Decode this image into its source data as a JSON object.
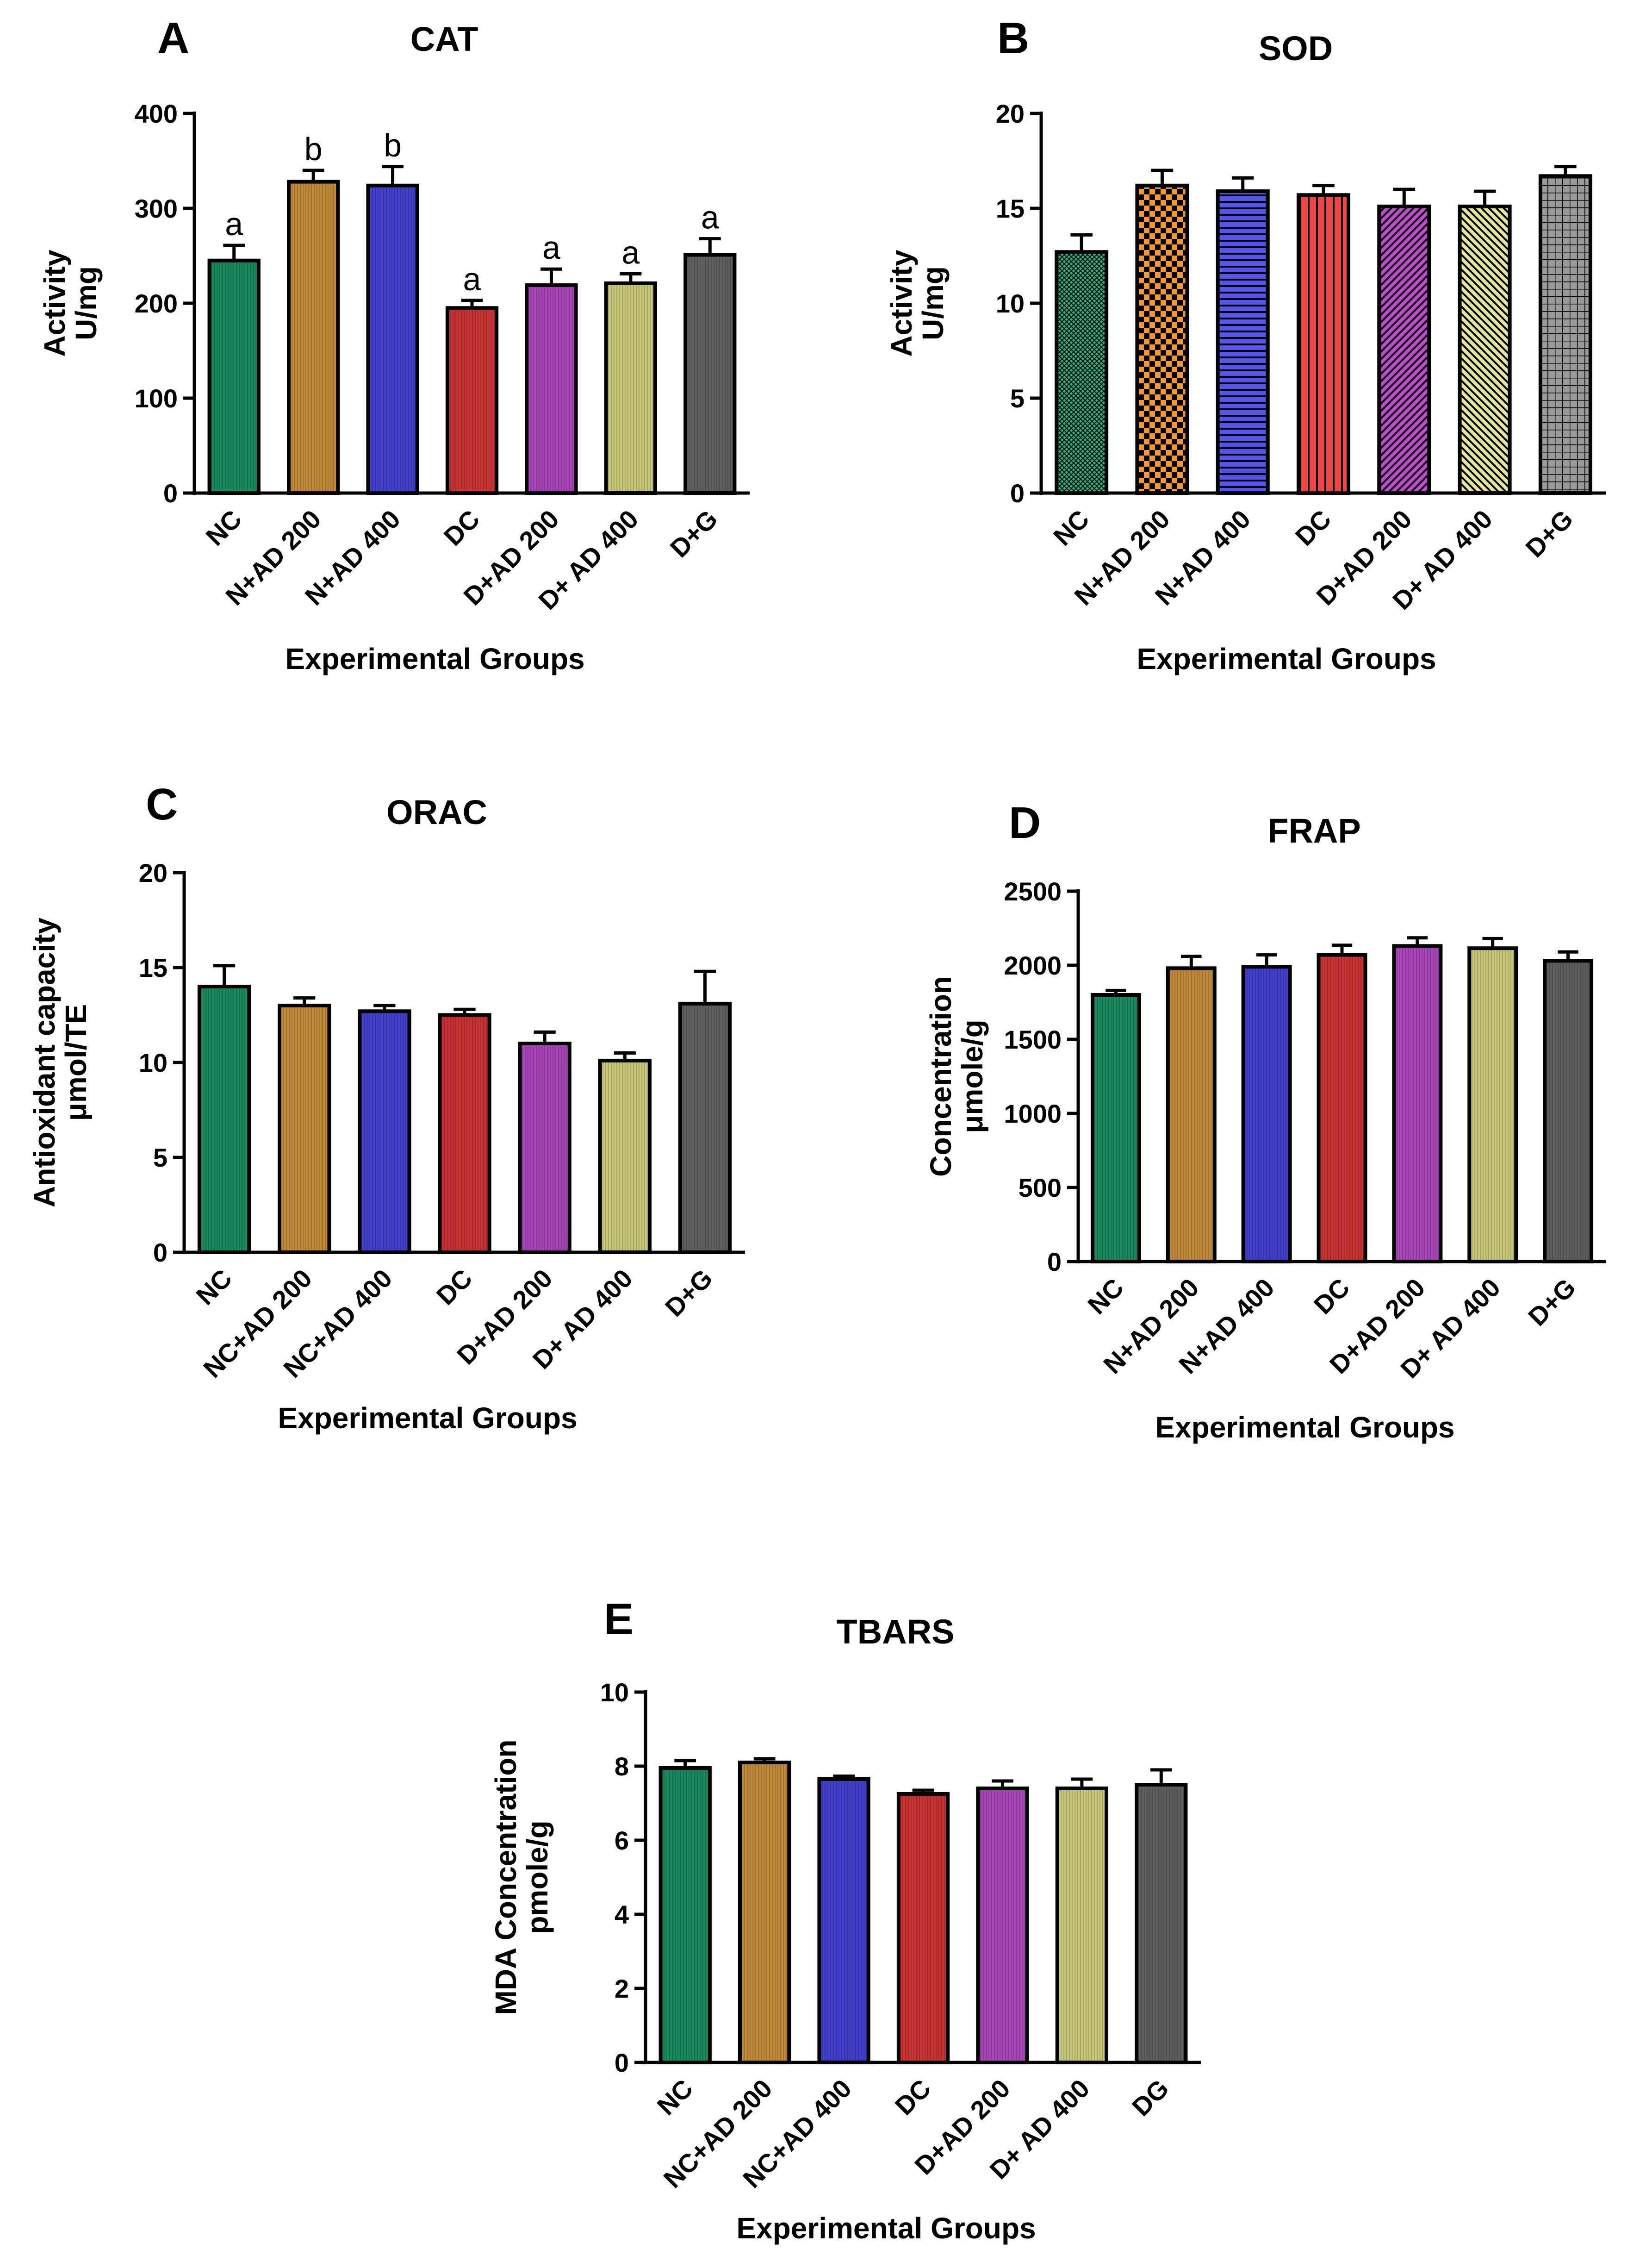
{
  "figure": {
    "patterns": {
      "dense": "dense",
      "checker": "checker",
      "hstripe": "hstripe",
      "vstripe": "vstripe",
      "diag": "diag",
      "diag2": "diag2",
      "grid": "grid",
      "fine": "fine"
    }
  },
  "chart_data": [
    {
      "id": "A",
      "panel_label": "A",
      "type": "bar",
      "title": "CAT",
      "xlabel": "Experimental Groups",
      "ylabel": [
        "Activity",
        "U/mg"
      ],
      "ylim": [
        0,
        400
      ],
      "yticks": [
        0,
        100,
        200,
        300,
        400
      ],
      "categories": [
        "NC",
        "N+AD 200",
        "N+AD 400",
        "DC",
        "D+AD 200",
        "D+ AD 400",
        "D+G"
      ],
      "values": [
        245,
        328,
        324,
        195,
        219,
        221,
        251
      ],
      "errors": [
        16,
        12,
        20,
        8,
        17,
        10,
        17
      ],
      "significance": [
        "a",
        "b",
        "b",
        "a",
        "a",
        "a",
        "a"
      ],
      "colors": [
        "#1a8a5e",
        "#c08a3a",
        "#4040cc",
        "#c83232",
        "#a845b8",
        "#c8c87a",
        "#5f5f5f"
      ],
      "pattern": "fine"
    },
    {
      "id": "B",
      "panel_label": "B",
      "type": "bar",
      "title": "SOD",
      "xlabel": "Experimental Groups",
      "ylabel": [
        "Activity",
        "U/mg"
      ],
      "ylim": [
        0,
        20
      ],
      "yticks": [
        0,
        5,
        10,
        15,
        20
      ],
      "categories": [
        "NC",
        "N+AD 200",
        "N+AD 400",
        "DC",
        "D+AD 200",
        "D+ AD 400",
        "D+G"
      ],
      "values": [
        12.7,
        16.2,
        15.9,
        15.7,
        15.1,
        15.1,
        16.7
      ],
      "errors": [
        0.9,
        0.8,
        0.7,
        0.5,
        0.9,
        0.8,
        0.5
      ],
      "colors": [
        "#1fb583",
        "#f39a2a",
        "#5555ee",
        "#f04545",
        "#c04ad0",
        "#e5e59a",
        "#9a9a9a"
      ],
      "patterns": [
        "dense",
        "checker",
        "hstripe",
        "vstripe",
        "diag",
        "diag2",
        "grid"
      ]
    },
    {
      "id": "C",
      "panel_label": "C",
      "type": "bar",
      "title": "ORAC",
      "xlabel": "Experimental Groups",
      "ylabel": [
        "Antioxidant capacity",
        "μmol/TE"
      ],
      "ylim": [
        0,
        20
      ],
      "yticks": [
        0,
        5,
        10,
        15,
        20
      ],
      "categories": [
        "NC",
        "NC+AD 200",
        "NC+AD 400",
        "DC",
        "D+AD 200",
        "D+ AD 400",
        "D+G"
      ],
      "values": [
        14.0,
        13.0,
        12.7,
        12.5,
        11.0,
        10.1,
        13.1
      ],
      "errors": [
        1.1,
        0.4,
        0.3,
        0.3,
        0.6,
        0.4,
        1.7
      ],
      "colors": [
        "#1a8a5e",
        "#c08a3a",
        "#4040cc",
        "#c83232",
        "#a845b8",
        "#c8c87a",
        "#5f5f5f"
      ],
      "pattern": "fine"
    },
    {
      "id": "D",
      "panel_label": "D",
      "type": "bar",
      "title": "FRAP",
      "xlabel": "Experimental Groups",
      "ylabel": [
        "Concentration",
        "μmole/g"
      ],
      "ylim": [
        0,
        2500
      ],
      "yticks": [
        0,
        500,
        1000,
        1500,
        2000,
        2500
      ],
      "categories": [
        "NC",
        "N+AD 200",
        "N+AD 400",
        "DC",
        "D+AD 200",
        "D+ AD 400",
        "D+G"
      ],
      "values": [
        1800,
        1980,
        1990,
        2070,
        2130,
        2115,
        2030
      ],
      "errors": [
        30,
        80,
        80,
        65,
        55,
        65,
        60
      ],
      "colors": [
        "#1a8a5e",
        "#c08a3a",
        "#4040cc",
        "#c83232",
        "#a845b8",
        "#c8c87a",
        "#5f5f5f"
      ],
      "pattern": "fine"
    },
    {
      "id": "E",
      "panel_label": "E",
      "type": "bar",
      "title": "TBARS",
      "xlabel": "Experimental Groups",
      "ylabel": [
        "MDA Concentration",
        "pmole/g"
      ],
      "ylim": [
        0,
        10
      ],
      "yticks": [
        0,
        2,
        4,
        6,
        8,
        10
      ],
      "categories": [
        "NC",
        "NC+AD 200",
        "NC+AD 400",
        "DC",
        "D+AD 200",
        "D+ AD 400",
        "DG"
      ],
      "values": [
        7.95,
        8.1,
        7.65,
        7.25,
        7.4,
        7.4,
        7.5
      ],
      "errors": [
        0.2,
        0.1,
        0.08,
        0.1,
        0.2,
        0.25,
        0.4
      ],
      "colors": [
        "#1a8a5e",
        "#c08a3a",
        "#4040cc",
        "#c83232",
        "#a845b8",
        "#c8c87a",
        "#5f5f5f"
      ],
      "pattern": "fine"
    }
  ]
}
